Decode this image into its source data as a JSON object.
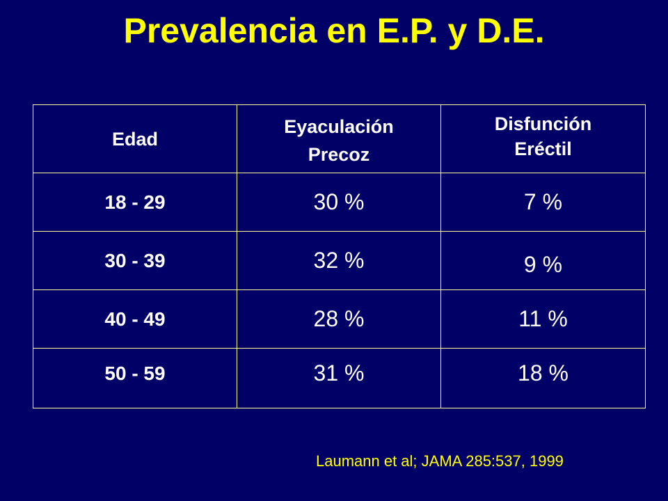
{
  "title": "Prevalencia en E.P. y D.E.",
  "table": {
    "headers": [
      {
        "line1": "Edad",
        "line2": ""
      },
      {
        "line1": "Eyaculación",
        "line2": "Precoz"
      },
      {
        "line1": "Disfunción",
        "line2": "Eréctil"
      }
    ],
    "rows": [
      {
        "age": "18 - 29",
        "ep": "30 %",
        "de": "7 %"
      },
      {
        "age": "30 - 39",
        "ep": "32 %",
        "de": "9 %"
      },
      {
        "age": "40 - 49",
        "ep": "28 %",
        "de": "11 %"
      },
      {
        "age": "50 - 59",
        "ep": "31 %",
        "de": "18 %"
      }
    ]
  },
  "citation": "Laumann et al; JAMA 285:537, 1999",
  "colors": {
    "background": "#000066",
    "title": "#ffff00",
    "border": "#ffff99",
    "text": "#ffffff"
  }
}
